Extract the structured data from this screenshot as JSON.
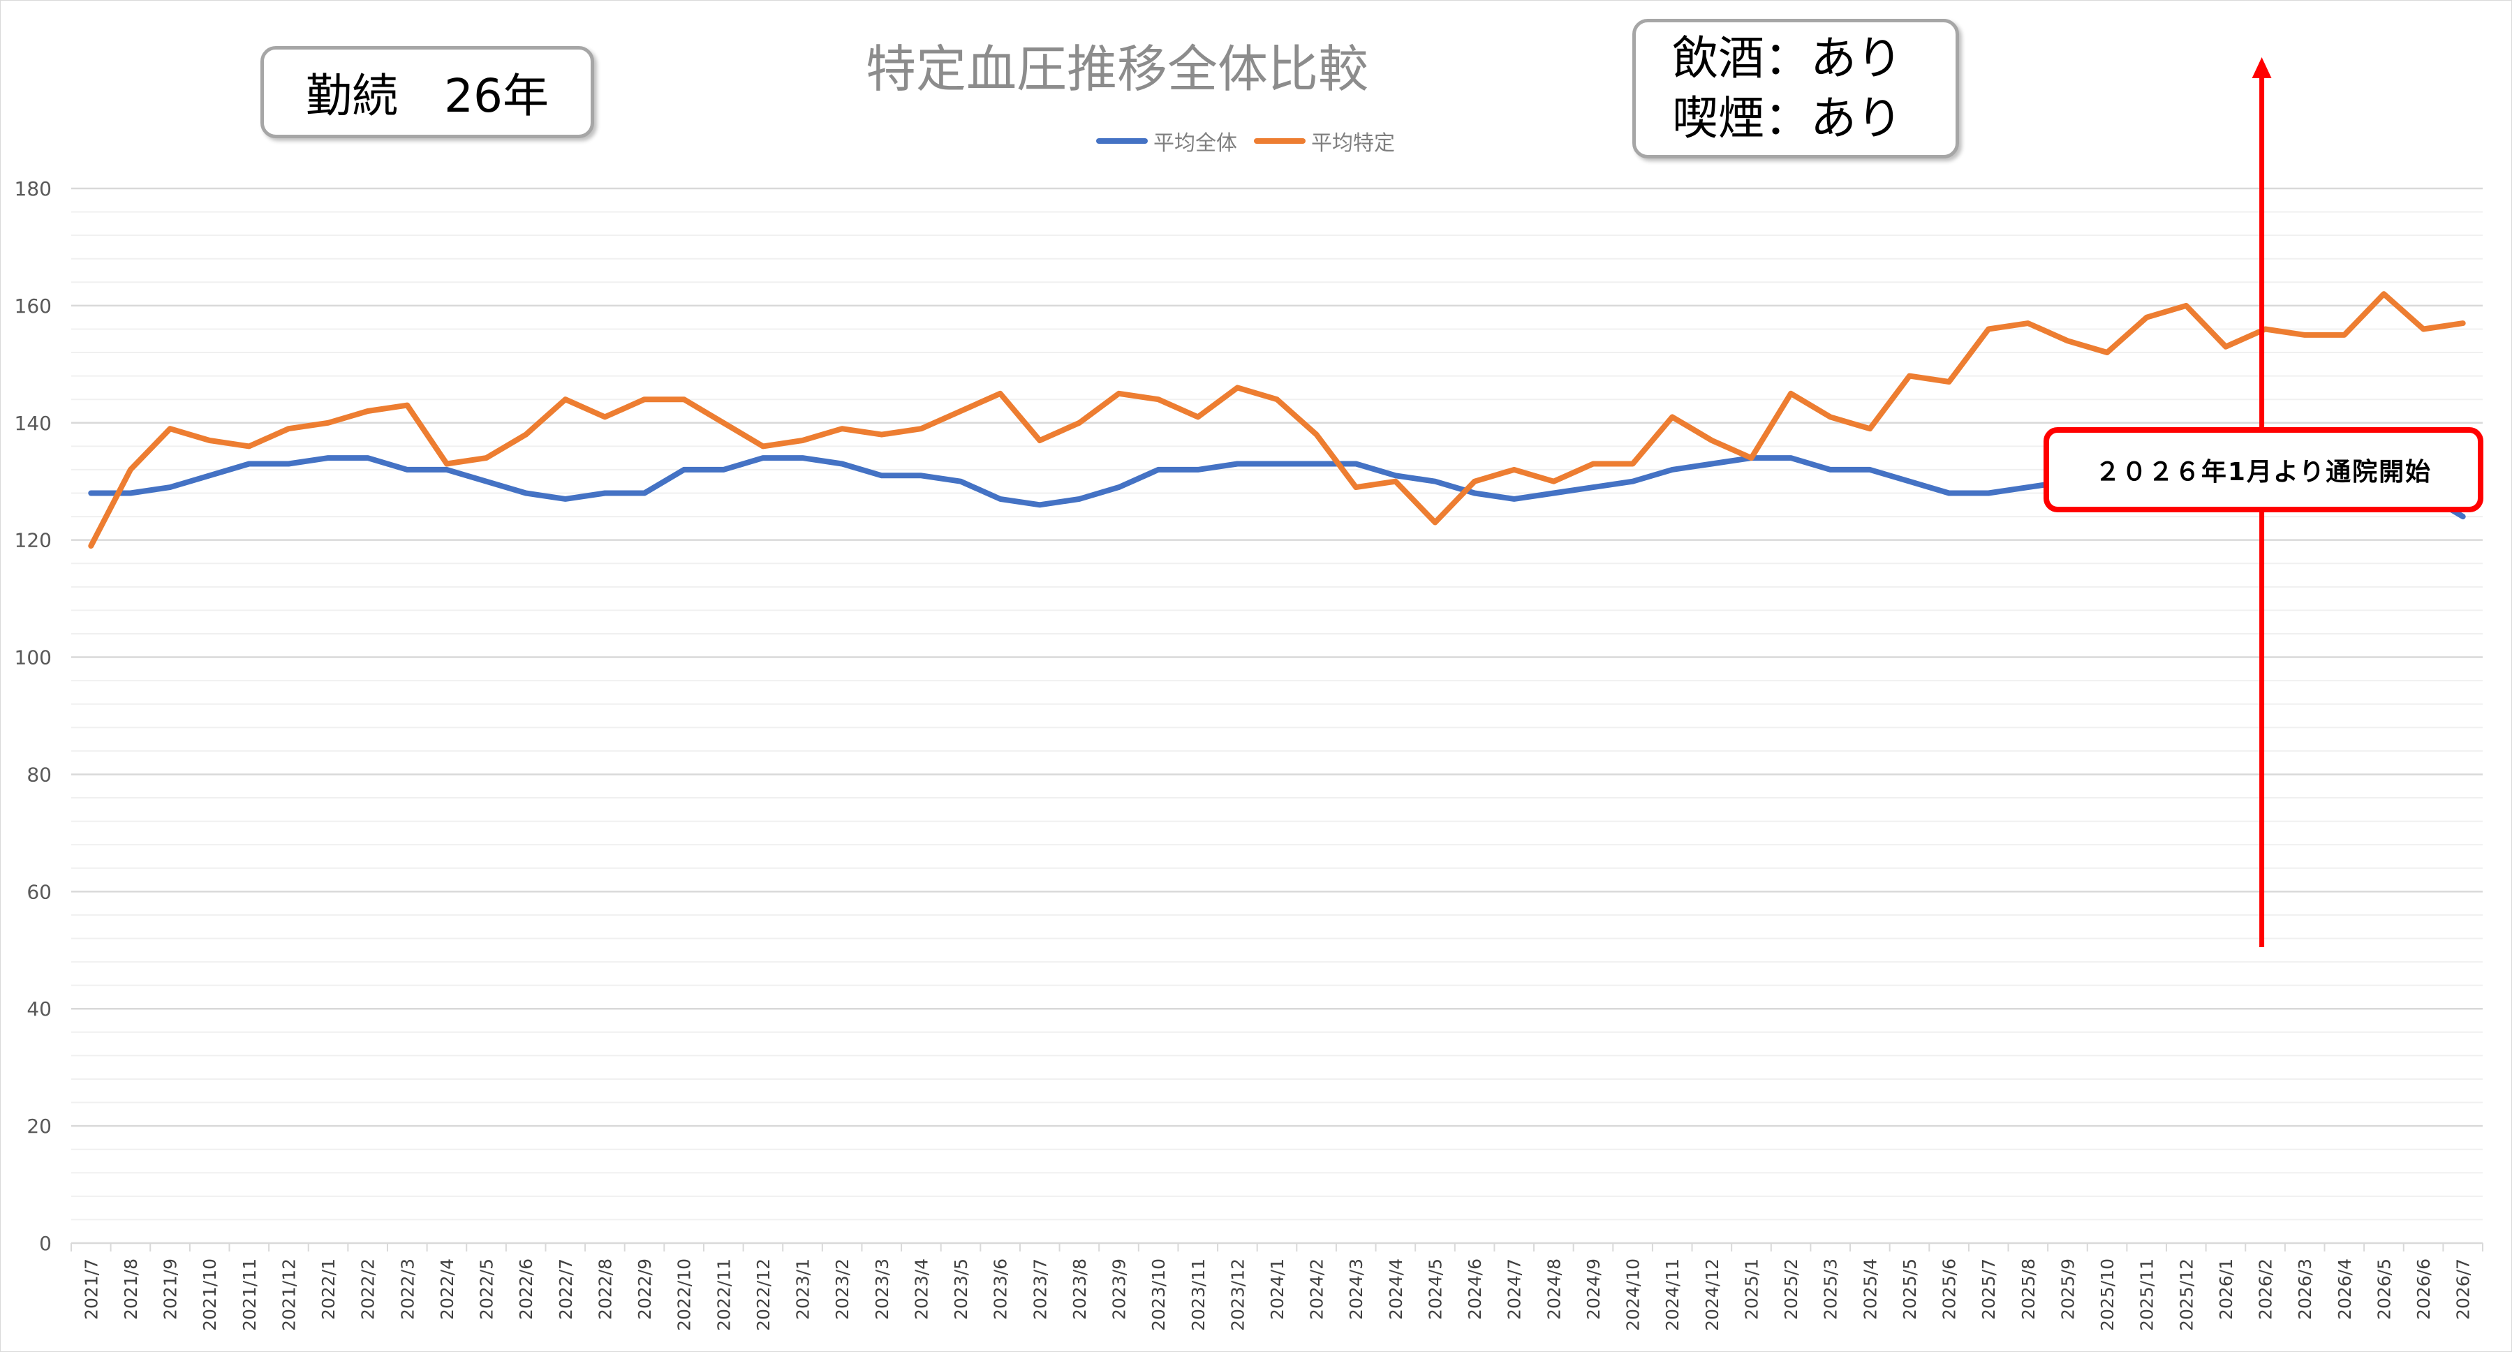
{
  "chart_data": {
    "type": "line",
    "title": "特定血圧推移全体比較",
    "ylim": [
      0,
      180
    ],
    "yticks": [
      0,
      20,
      40,
      60,
      80,
      100,
      120,
      140,
      160,
      180
    ],
    "grid": true,
    "legend_position": "top-center",
    "categories": [
      "2021/7",
      "2021/8",
      "2021/9",
      "2021/10",
      "2021/11",
      "2021/12",
      "2022/1",
      "2022/2",
      "2022/3",
      "2022/4",
      "2022/5",
      "2022/6",
      "2022/7",
      "2022/8",
      "2022/9",
      "2022/10",
      "2022/11",
      "2022/12",
      "2023/1",
      "2023/2",
      "2023/3",
      "2023/4",
      "2023/5",
      "2023/6",
      "2023/7",
      "2023/8",
      "2023/9",
      "2023/10",
      "2023/11",
      "2023/12",
      "2024/1",
      "2024/2",
      "2024/3",
      "2024/4",
      "2024/5",
      "2024/6",
      "2024/7",
      "2024/8",
      "2024/9",
      "2024/10",
      "2024/11",
      "2024/12",
      "2025/1",
      "2025/2",
      "2025/3",
      "2025/4",
      "2025/5",
      "2025/6",
      "2025/7",
      "2025/8",
      "2025/9",
      "2025/10",
      "2025/11",
      "2025/12",
      "2026/1",
      "2026/2",
      "2026/3",
      "2026/4",
      "2026/5",
      "2026/6",
      "2026/7"
    ],
    "series": [
      {
        "name": "平均全体",
        "color": "#4472c4",
        "values": [
          128,
          128,
          129,
          131,
          133,
          133,
          134,
          134,
          132,
          132,
          130,
          128,
          127,
          128,
          128,
          132,
          132,
          134,
          134,
          133,
          131,
          131,
          130,
          127,
          126,
          127,
          129,
          132,
          132,
          133,
          133,
          133,
          133,
          131,
          130,
          128,
          127,
          128,
          129,
          130,
          132,
          133,
          134,
          134,
          132,
          132,
          130,
          128,
          128,
          129,
          130,
          131,
          132,
          133,
          132,
          132,
          131,
          130,
          129,
          128,
          124
        ]
      },
      {
        "name": "平均特定",
        "color": "#ed7d31",
        "values": [
          119,
          132,
          139,
          137,
          136,
          139,
          140,
          142,
          143,
          133,
          134,
          138,
          144,
          141,
          144,
          144,
          140,
          136,
          137,
          139,
          138,
          139,
          142,
          145,
          137,
          140,
          145,
          144,
          141,
          146,
          144,
          138,
          129,
          130,
          123,
          130,
          132,
          130,
          133,
          133,
          141,
          137,
          134,
          145,
          141,
          139,
          148,
          147,
          156,
          157,
          154,
          152,
          158,
          160,
          153,
          156,
          155,
          155,
          162,
          156,
          157
        ]
      }
    ],
    "annotations": {
      "tenure": "勤続　26年",
      "drinking": "飲酒：あり",
      "smoking": "喫煙：あり",
      "callout": "２０２６年1月より通院開始",
      "arrow_at_category": "2026/2",
      "arrow_color": "#ff0000",
      "callout_border_color": "#ff0000"
    }
  }
}
